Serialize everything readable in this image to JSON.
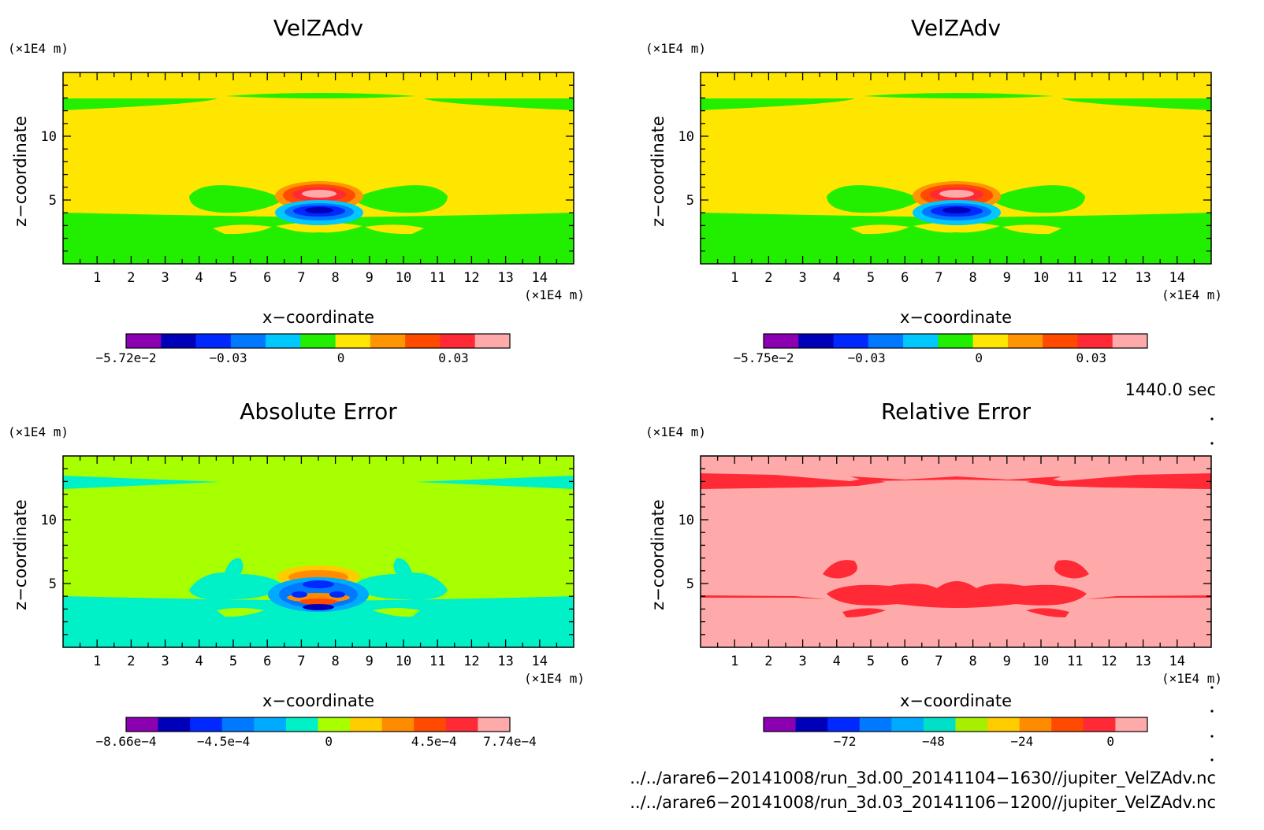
{
  "chart_data": [
    {
      "type": "heatmap",
      "title": "VelZAdv",
      "xlabel": "x−coordinate",
      "ylabel": "z−coordinate",
      "x_unit": "(×1E4 m)",
      "y_unit": "(×1E4 m)",
      "xlim": [
        0,
        15
      ],
      "ylim": [
        0,
        15
      ],
      "xticks": [
        1,
        2,
        3,
        4,
        5,
        6,
        7,
        8,
        9,
        10,
        11,
        12,
        13,
        14
      ],
      "yticks": [
        5,
        10
      ],
      "background": "#ffe600",
      "colorbar": {
        "colors": [
          "#8b00b0",
          "#0000b8",
          "#0028ff",
          "#0078ff",
          "#00c8ff",
          "#22ee00",
          "#ffe600",
          "#ff9500",
          "#ff4a00",
          "#ff2a36",
          "#ffaaaa"
        ],
        "ticks": [
          {
            "value": -0.0572,
            "label": "−5.72e−2"
          },
          {
            "value": -0.03,
            "label": "−0.03"
          },
          {
            "value": 0,
            "label": "0"
          },
          {
            "value": 0.03,
            "label": "0.03"
          }
        ],
        "range": [
          -0.0572,
          0.045
        ]
      }
    },
    {
      "type": "heatmap",
      "title": "VelZAdv",
      "xlabel": "x−coordinate",
      "ylabel": "z−coordinate",
      "x_unit": "(×1E4 m)",
      "y_unit": "(×1E4 m)",
      "xlim": [
        0,
        15
      ],
      "ylim": [
        0,
        15
      ],
      "xticks": [
        1,
        2,
        3,
        4,
        5,
        6,
        7,
        8,
        9,
        10,
        11,
        12,
        13,
        14
      ],
      "yticks": [
        5,
        10
      ],
      "background": "#ffe600",
      "colorbar": {
        "colors": [
          "#8b00b0",
          "#0000b8",
          "#0028ff",
          "#0078ff",
          "#00c8ff",
          "#22ee00",
          "#ffe600",
          "#ff9500",
          "#ff4a00",
          "#ff2a36",
          "#ffaaaa"
        ],
        "ticks": [
          {
            "value": -0.0575,
            "label": "−5.75e−2"
          },
          {
            "value": -0.03,
            "label": "−0.03"
          },
          {
            "value": 0,
            "label": "0"
          },
          {
            "value": 0.03,
            "label": "0.03"
          }
        ],
        "range": [
          -0.0575,
          0.045
        ]
      }
    },
    {
      "type": "heatmap",
      "title": "Absolute Error",
      "xlabel": "x−coordinate",
      "ylabel": "z−coordinate",
      "x_unit": "(×1E4 m)",
      "y_unit": "(×1E4 m)",
      "xlim": [
        0,
        15
      ],
      "ylim": [
        0,
        15
      ],
      "xticks": [
        1,
        2,
        3,
        4,
        5,
        6,
        7,
        8,
        9,
        10,
        11,
        12,
        13,
        14
      ],
      "yticks": [
        5,
        10
      ],
      "background": "#a8ff00",
      "colorbar": {
        "colors": [
          "#8b00b0",
          "#0000b8",
          "#0028ff",
          "#0078ff",
          "#00aaff",
          "#00f0c8",
          "#a8ff00",
          "#ffcc00",
          "#ff8c00",
          "#ff4a00",
          "#ff2a36",
          "#ffaaaa"
        ],
        "ticks": [
          {
            "value": -0.000866,
            "label": "−8.66e−4"
          },
          {
            "value": -0.00045,
            "label": "−4.5e−4"
          },
          {
            "value": 0,
            "label": "0"
          },
          {
            "value": 0.00045,
            "label": "4.5e−4"
          },
          {
            "value": 0.000774,
            "label": "7.74e−4"
          }
        ],
        "range": [
          -0.000866,
          0.000774
        ]
      }
    },
    {
      "type": "heatmap",
      "title": "Relative Error",
      "xlabel": "x−coordinate",
      "ylabel": "z−coordinate",
      "x_unit": "(×1E4 m)",
      "y_unit": "(×1E4 m)",
      "xlim": [
        0,
        15
      ],
      "ylim": [
        0,
        15
      ],
      "xticks": [
        1,
        2,
        3,
        4,
        5,
        6,
        7,
        8,
        9,
        10,
        11,
        12,
        13,
        14
      ],
      "yticks": [
        5,
        10
      ],
      "background": "#ffaaaa",
      "colorbar": {
        "colors": [
          "#8b00b0",
          "#0000b8",
          "#0028ff",
          "#0078ff",
          "#00aaff",
          "#00e0c8",
          "#a8ee00",
          "#ffcc00",
          "#ff8c00",
          "#ff4a00",
          "#ff2a36",
          "#ffaaaa"
        ],
        "ticks": [
          {
            "value": -72,
            "label": "−72"
          },
          {
            "value": -48,
            "label": "−48"
          },
          {
            "value": -24,
            "label": "−24"
          },
          {
            "value": 0,
            "label": "0"
          }
        ],
        "range": [
          -94,
          10
        ]
      }
    }
  ],
  "time_label": "1440.0 sec",
  "file_paths": [
    "../../arare6−20141008/run_3d.00_20141104−1630//jupiter_VelZAdv.nc",
    "../../arare6−20141008/run_3d.03_20141106−1200//jupiter_VelZAdv.nc"
  ]
}
